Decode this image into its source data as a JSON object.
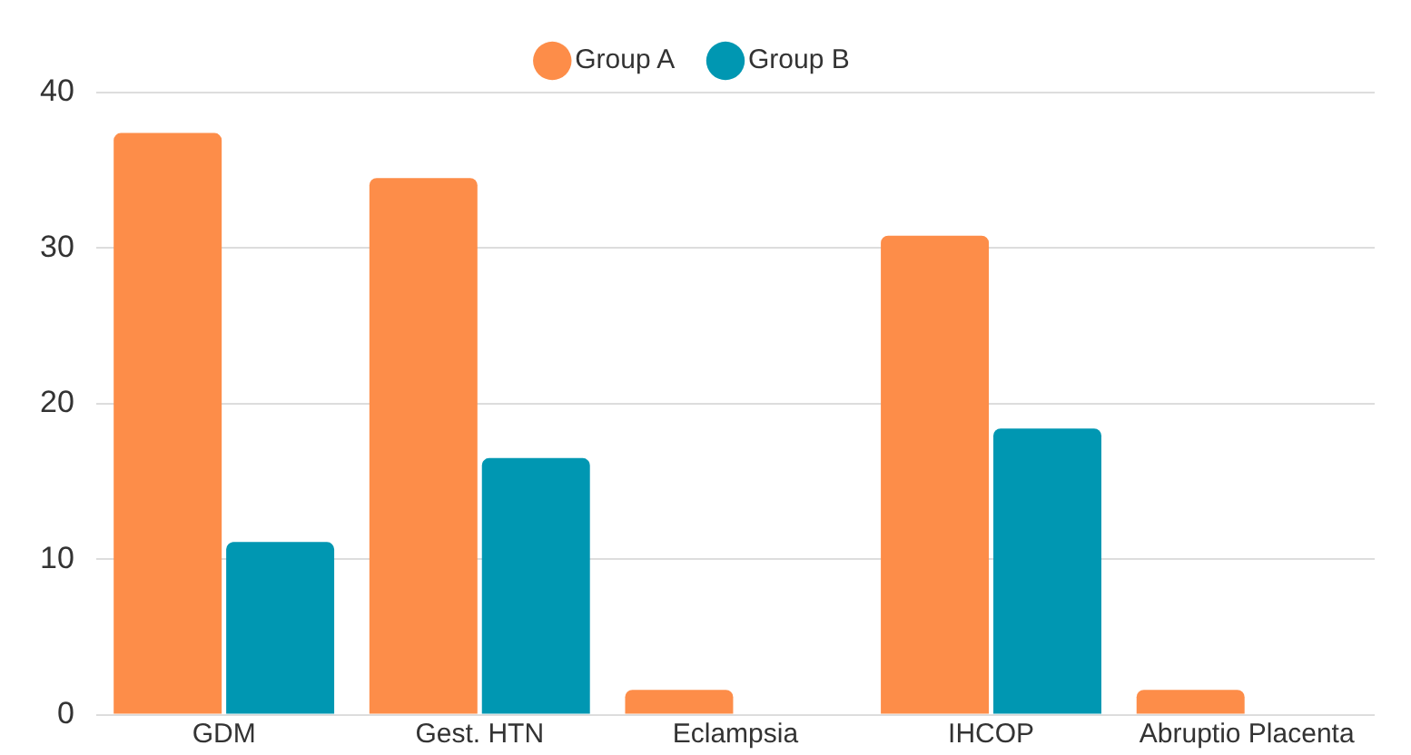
{
  "chart_data": {
    "type": "bar",
    "categories": [
      "GDM",
      "Gest. HTN",
      "Eclampsia",
      "IHCOP",
      "Abruptio Placenta"
    ],
    "series": [
      {
        "name": "Group A",
        "color": "#fd8d49",
        "values": [
          37.4,
          34.5,
          1.6,
          30.8,
          1.6
        ]
      },
      {
        "name": "Group B",
        "color": "#0097b2",
        "values": [
          11.1,
          16.5,
          0,
          18.4,
          0
        ]
      }
    ],
    "ylim": [
      0,
      40
    ],
    "yticks": [
      0,
      10,
      20,
      30,
      40
    ],
    "grid": "y",
    "legend": "top"
  }
}
